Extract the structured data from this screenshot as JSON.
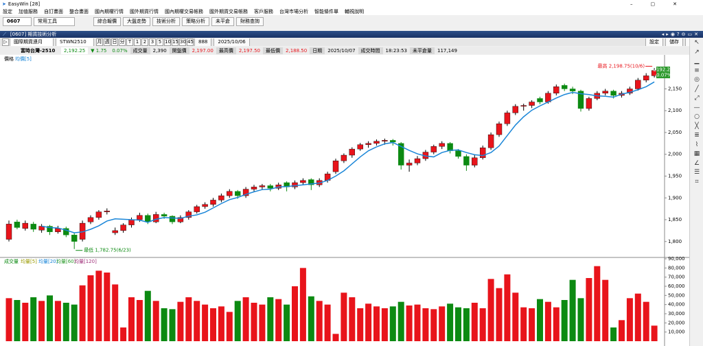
{
  "window": {
    "title": "EasyWin [28]"
  },
  "menu": [
    "設定",
    "加值服務",
    "自訂畫面",
    "整合畫面",
    "國內期權行情",
    "國外期貨行情",
    "國內期權交易帳務",
    "國外期貨交易帳務",
    "客戶服務",
    "台灣市場分析",
    "智能條件單",
    "輔視說明"
  ],
  "toolbar": {
    "code": "0607",
    "tools": "常用工具",
    "buttons": [
      "綜合報價",
      "大盤走勢",
      "技術分析",
      "策略分析",
      "未平倉",
      "財務查詢"
    ]
  },
  "panel": {
    "title": "[0607] 期貨技術分析",
    "market": "國際期貨連月",
    "symbol": "STWN2510",
    "periods": [
      "月",
      "週",
      "日",
      "分",
      "T",
      "1",
      "2",
      "3",
      "5",
      "10",
      "15",
      "30",
      "45"
    ],
    "count": "888",
    "date": "2025/10/06",
    "actions": [
      "設定",
      "儲存",
      "工具"
    ]
  },
  "quote": {
    "name": "富時台灣-2510",
    "price": "2,192.25",
    "change": "▼ 1.75",
    "pct": "0.07%",
    "fields": [
      {
        "label": "成交量",
        "value": "2,390"
      },
      {
        "label": "開盤價",
        "value": "2,197.00"
      },
      {
        "label": "最高價",
        "value": "2,197.50"
      },
      {
        "label": "最低價",
        "value": "2,188.50"
      },
      {
        "label": "日期",
        "value": "2025/10/07"
      },
      {
        "label": "成交時間",
        "value": "18:23:53"
      },
      {
        "label": "未平倉量",
        "value": "117,149"
      }
    ]
  },
  "chart_data": [
    {
      "type": "candlestick",
      "title": "價格",
      "up_color": "#e8141b",
      "down_color": "#0c8a12",
      "ylim": [
        1765,
        2220
      ],
      "yticks": [
        {
          "value": 1800,
          "label": "1,800"
        },
        {
          "value": 1850,
          "label": "1,850"
        },
        {
          "value": 1900,
          "label": "1,900"
        },
        {
          "value": 1950,
          "label": "1,950"
        },
        {
          "value": 2000,
          "label": "2,000"
        },
        {
          "value": 2050,
          "label": "2,050"
        },
        {
          "value": 2100,
          "label": "2,100"
        },
        {
          "value": 2150,
          "label": "2,150"
        }
      ],
      "grid": false,
      "candles": [
        [
          1805,
          1848,
          1800,
          1840
        ],
        [
          1845,
          1850,
          1828,
          1832
        ],
        [
          1830,
          1848,
          1825,
          1842
        ],
        [
          1840,
          1845,
          1822,
          1828
        ],
        [
          1826,
          1840,
          1820,
          1835
        ],
        [
          1835,
          1838,
          1815,
          1822
        ],
        [
          1822,
          1836,
          1818,
          1830
        ],
        [
          1830,
          1834,
          1810,
          1815
        ],
        [
          1815,
          1820,
          1782.75,
          1800
        ],
        [
          1805,
          1848,
          1800,
          1842
        ],
        [
          1845,
          1860,
          1840,
          1855
        ],
        [
          1855,
          1872,
          1850,
          1868
        ],
        [
          1868,
          1876,
          1862,
          1870
        ],
        [
          1820,
          1832,
          1815,
          1825
        ],
        [
          1825,
          1842,
          1820,
          1838
        ],
        [
          1838,
          1855,
          1832,
          1850
        ],
        [
          1850,
          1866,
          1845,
          1860
        ],
        [
          1860,
          1864,
          1840,
          1845
        ],
        [
          1845,
          1868,
          1842,
          1862
        ],
        [
          1862,
          1866,
          1852,
          1858
        ],
        [
          1858,
          1860,
          1840,
          1845
        ],
        [
          1845,
          1860,
          1842,
          1855
        ],
        [
          1855,
          1872,
          1850,
          1868
        ],
        [
          1868,
          1884,
          1864,
          1880
        ],
        [
          1880,
          1890,
          1875,
          1885
        ],
        [
          1885,
          1900,
          1880,
          1895
        ],
        [
          1895,
          1910,
          1890,
          1905
        ],
        [
          1905,
          1920,
          1900,
          1915
        ],
        [
          1915,
          1918,
          1898,
          1905
        ],
        [
          1905,
          1925,
          1900,
          1920
        ],
        [
          1920,
          1930,
          1915,
          1925
        ],
        [
          1925,
          1932,
          1918,
          1928
        ],
        [
          1928,
          1932,
          1915,
          1922
        ],
        [
          1922,
          1935,
          1918,
          1930
        ],
        [
          1935,
          1938,
          1915,
          1925
        ],
        [
          1925,
          1940,
          1920,
          1935
        ],
        [
          1935,
          1945,
          1930,
          1940
        ],
        [
          1942,
          1945,
          1918,
          1930
        ],
        [
          1930,
          1945,
          1925,
          1940
        ],
        [
          1940,
          1960,
          1935,
          1955
        ],
        [
          1960,
          1990,
          1955,
          1985
        ],
        [
          1985,
          2002,
          1980,
          1998
        ],
        [
          1998,
          2016,
          1992,
          2012
        ],
        [
          2012,
          2026,
          2008,
          2022
        ],
        [
          2022,
          2030,
          2015,
          2025
        ],
        [
          2025,
          2034,
          2020,
          2030
        ],
        [
          2030,
          2036,
          2022,
          2032
        ],
        [
          2032,
          2035,
          2020,
          2028
        ],
        [
          2025,
          2028,
          1965,
          1975
        ],
        [
          1975,
          1988,
          1960,
          1980
        ],
        [
          1980,
          1996,
          1975,
          1990
        ],
        [
          1990,
          2010,
          1985,
          2005
        ],
        [
          2005,
          2022,
          2000,
          2018
        ],
        [
          2018,
          2030,
          2012,
          2025
        ],
        [
          2025,
          2028,
          2002,
          2008
        ],
        [
          2008,
          2012,
          1990,
          1995
        ],
        [
          1995,
          2000,
          1962,
          1975
        ],
        [
          1975,
          1998,
          1970,
          1992
        ],
        [
          1992,
          2020,
          1988,
          2015
        ],
        [
          2015,
          2050,
          2010,
          2045
        ],
        [
          2045,
          2075,
          2040,
          2070
        ],
        [
          2070,
          2100,
          2065,
          2095
        ],
        [
          2095,
          2115,
          2090,
          2110
        ],
        [
          2110,
          2116,
          2100,
          2112
        ],
        [
          2112,
          2124,
          2106,
          2120
        ],
        [
          2128,
          2132,
          2115,
          2120
        ],
        [
          2120,
          2145,
          2116,
          2140
        ],
        [
          2140,
          2160,
          2135,
          2155
        ],
        [
          2158,
          2162,
          2145,
          2150
        ],
        [
          2150,
          2155,
          2138,
          2145
        ],
        [
          2145,
          2148,
          2098,
          2105
        ],
        [
          2105,
          2132,
          2100,
          2128
        ],
        [
          2128,
          2145,
          2124,
          2140
        ],
        [
          2140,
          2150,
          2135,
          2145
        ],
        [
          2145,
          2148,
          2128,
          2135
        ],
        [
          2135,
          2145,
          2130,
          2140
        ],
        [
          2140,
          2155,
          2136,
          2150
        ],
        [
          2150,
          2175,
          2146,
          2170
        ],
        [
          2170,
          2186,
          2165,
          2180
        ],
        [
          2180,
          2198.75,
          2176,
          2192.25
        ]
      ],
      "ma": {
        "name": "均價[5]",
        "color": "#1a86d8",
        "values": [
          null,
          null,
          null,
          null,
          1835,
          1832,
          1831,
          1826,
          1820,
          1822,
          1828,
          1836,
          1847,
          1852,
          1851,
          1850,
          1849,
          1844,
          1851,
          1855,
          1854,
          1853,
          1858,
          1861,
          1867,
          1877,
          1887,
          1896,
          1901,
          1908,
          1914,
          1919,
          1920,
          1925,
          1926,
          1928,
          1930,
          1932,
          1934,
          1940,
          1950,
          1962,
          1978,
          1994,
          2008,
          2017,
          2024,
          2027,
          2018,
          2009,
          2001,
          1996,
          1994,
          2004,
          2009,
          2010,
          2004,
          1999,
          1997,
          2004,
          2019,
          2043,
          2067,
          2086,
          2101,
          2111,
          2120,
          2129,
          2137,
          2142,
          2139,
          2137,
          2134,
          2133,
          2131,
          2138,
          2142,
          2148,
          2155,
          2166
        ]
      },
      "annotations": [
        "最高 2,198.75(10/6)",
        "最低 1,782.75(6/23)"
      ],
      "last_label": "2192.25",
      "last_change": "-0.07%"
    },
    {
      "type": "bar",
      "title": "成交量",
      "legend": [
        {
          "name": "均量[5]",
          "color": "#9a9a00"
        },
        {
          "name": "均量[20]",
          "color": "#1a86d8"
        },
        {
          "name": "均量[60]",
          "color": "#2a9a2a"
        },
        {
          "name": "均量[120]",
          "color": "#a0307a"
        }
      ],
      "ylim": [
        0,
        90000
      ],
      "yticks": [
        {
          "value": 10000,
          "label": "10,000"
        },
        {
          "value": 20000,
          "label": "20,000"
        },
        {
          "value": 30000,
          "label": "30,000"
        },
        {
          "value": 40000,
          "label": "40,000"
        },
        {
          "value": 50000,
          "label": "50,000"
        },
        {
          "value": 60000,
          "label": "60,000"
        },
        {
          "value": 70000,
          "label": "70,000"
        },
        {
          "value": 80000,
          "label": "80,000"
        },
        {
          "value": 90000,
          "label": "90,000"
        }
      ],
      "values": [
        47000,
        45000,
        42000,
        48000,
        44000,
        50000,
        44000,
        42000,
        40000,
        61000,
        72000,
        77000,
        75000,
        62000,
        15000,
        48000,
        45000,
        55000,
        44000,
        36000,
        35000,
        43000,
        48000,
        44000,
        40000,
        36000,
        38000,
        32000,
        44000,
        48000,
        42000,
        40000,
        48000,
        46000,
        40000,
        60000,
        80000,
        49000,
        44000,
        40000,
        8000,
        53000,
        48000,
        36000,
        41000,
        38000,
        36000,
        38000,
        43000,
        39000,
        40000,
        36000,
        35000,
        38000,
        41000,
        37000,
        36000,
        42000,
        36000,
        68000,
        58000,
        73000,
        53000,
        37000,
        36000,
        46000,
        43000,
        37000,
        45000,
        67000,
        47000,
        69000,
        82000,
        67000,
        15000,
        23000,
        47000,
        52000,
        43000,
        17000
      ]
    }
  ]
}
